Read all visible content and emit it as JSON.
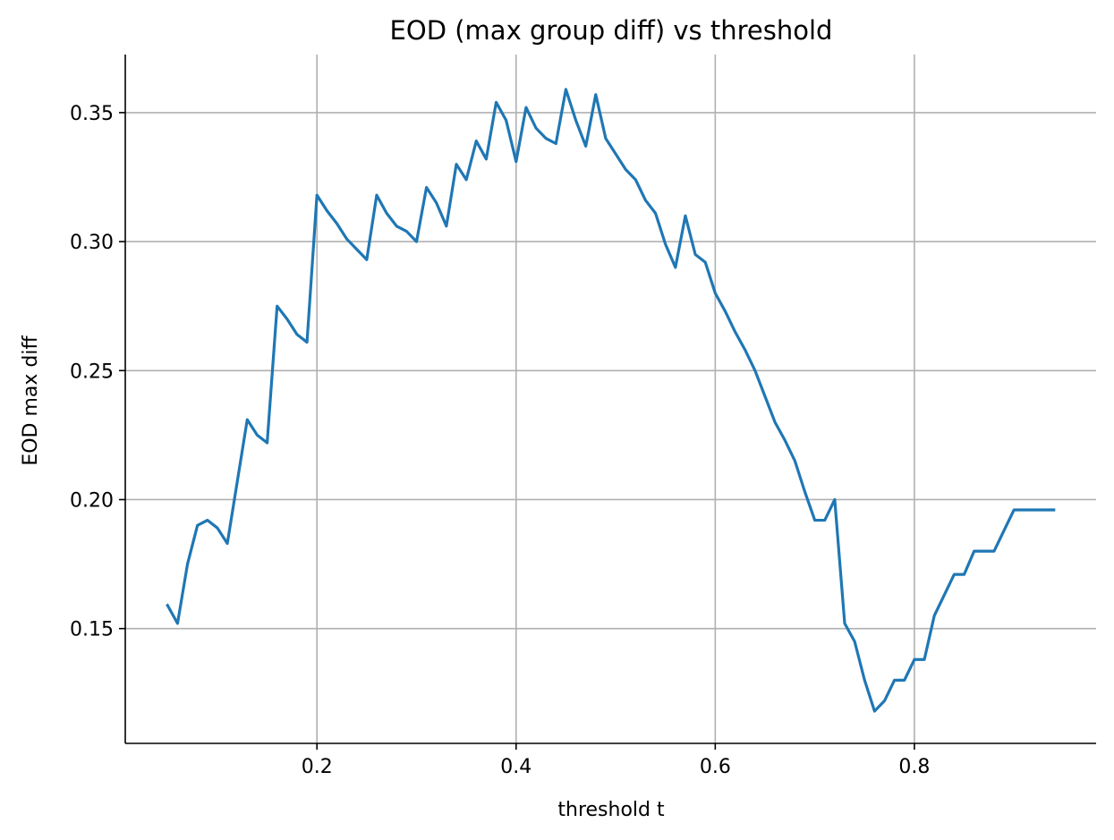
{
  "chart_data": {
    "type": "line",
    "title": "EOD (max group diff) vs threshold",
    "xlabel": "threshold t",
    "ylabel": "EOD max diff",
    "xlim": [
      0.0075,
      0.9825
    ],
    "ylim": [
      0.1055,
      0.3725
    ],
    "xticks": [
      0.2,
      0.4,
      0.6,
      0.8
    ],
    "xtick_labels": [
      "0.2",
      "0.4",
      "0.6",
      "0.8"
    ],
    "yticks": [
      0.15,
      0.2,
      0.25,
      0.3,
      0.35
    ],
    "ytick_labels": [
      "0.15",
      "0.20",
      "0.25",
      "0.30",
      "0.35"
    ],
    "grid": true,
    "line_color": "#1f77b4",
    "series": [
      {
        "name": "EOD max diff",
        "x": [
          0.05,
          0.06,
          0.07,
          0.08,
          0.09,
          0.1,
          0.11,
          0.12,
          0.13,
          0.14,
          0.15,
          0.16,
          0.17,
          0.18,
          0.19,
          0.2,
          0.21,
          0.22,
          0.23,
          0.24,
          0.25,
          0.26,
          0.27,
          0.28,
          0.29,
          0.3,
          0.31,
          0.32,
          0.33,
          0.34,
          0.35,
          0.36,
          0.37,
          0.38,
          0.39,
          0.4,
          0.41,
          0.42,
          0.43,
          0.44,
          0.45,
          0.46,
          0.47,
          0.48,
          0.49,
          0.5,
          0.51,
          0.52,
          0.53,
          0.54,
          0.55,
          0.56,
          0.57,
          0.58,
          0.59,
          0.6,
          0.61,
          0.62,
          0.63,
          0.64,
          0.65,
          0.66,
          0.67,
          0.68,
          0.69,
          0.7,
          0.71,
          0.72,
          0.73,
          0.74,
          0.75,
          0.76,
          0.77,
          0.78,
          0.79,
          0.8,
          0.81,
          0.82,
          0.83,
          0.84,
          0.85,
          0.86,
          0.87,
          0.88,
          0.89,
          0.9,
          0.91,
          0.92,
          0.93,
          0.94
        ],
        "values": [
          0.159,
          0.152,
          0.175,
          0.19,
          0.192,
          0.189,
          0.183,
          0.207,
          0.231,
          0.225,
          0.222,
          0.275,
          0.27,
          0.264,
          0.261,
          0.318,
          0.312,
          0.307,
          0.301,
          0.297,
          0.293,
          0.318,
          0.311,
          0.306,
          0.304,
          0.3,
          0.321,
          0.315,
          0.306,
          0.33,
          0.324,
          0.339,
          0.332,
          0.354,
          0.347,
          0.331,
          0.352,
          0.344,
          0.34,
          0.338,
          0.359,
          0.347,
          0.337,
          0.357,
          0.34,
          0.334,
          0.328,
          0.324,
          0.316,
          0.311,
          0.299,
          0.29,
          0.31,
          0.295,
          0.292,
          0.28,
          0.273,
          0.265,
          0.258,
          0.25,
          0.24,
          0.23,
          0.223,
          0.215,
          0.203,
          0.192,
          0.192,
          0.2,
          0.152,
          0.145,
          0.13,
          0.118,
          0.122,
          0.13,
          0.13,
          0.138,
          0.138,
          0.155,
          0.163,
          0.171,
          0.171,
          0.18,
          0.18,
          0.18,
          0.188,
          0.196,
          0.196,
          0.196,
          0.196,
          0.196
        ]
      }
    ]
  }
}
